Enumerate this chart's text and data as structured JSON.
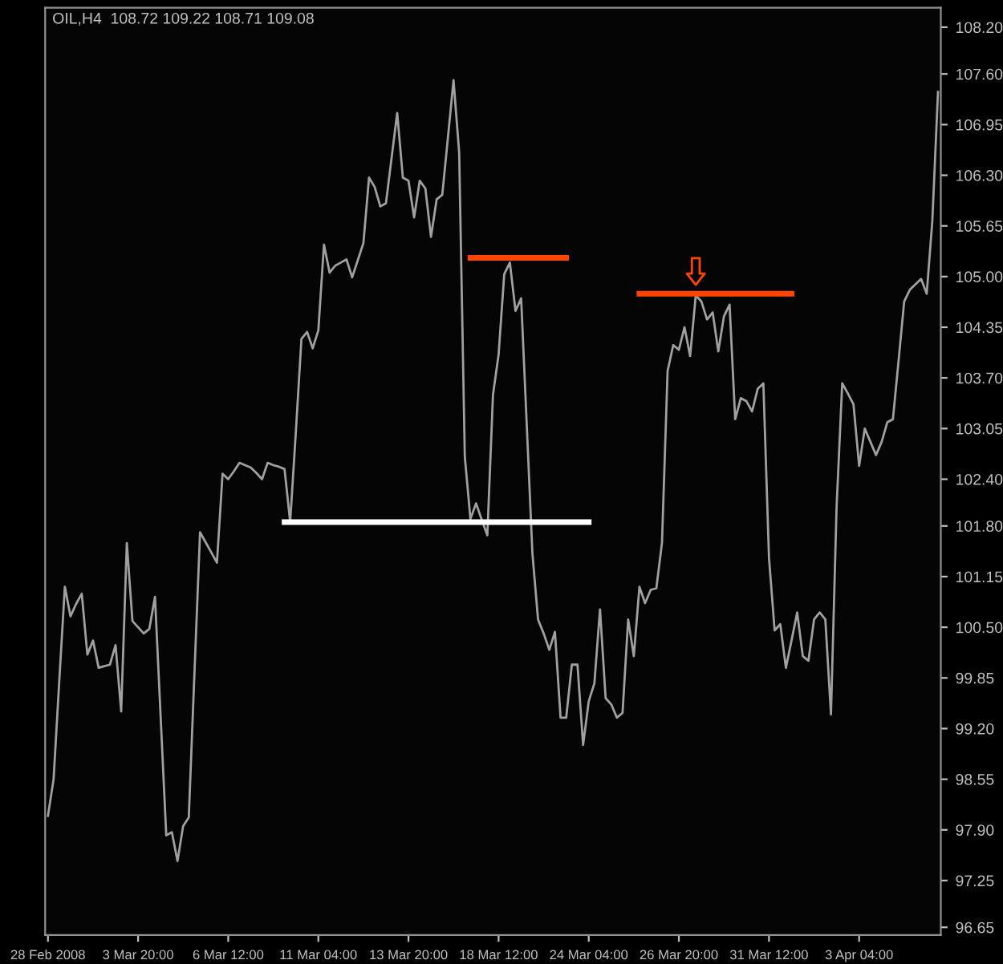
{
  "chart_data": {
    "type": "line",
    "title": "OIL,H4  108.72 109.22 108.71 109.08",
    "categories": [
      "28 Feb 2008",
      null,
      null,
      null,
      null,
      null,
      null,
      null,
      null,
      null,
      null,
      null,
      null,
      null,
      null,
      null,
      "3 Mar 20:00",
      null,
      null,
      null,
      null,
      null,
      null,
      null,
      null,
      null,
      null,
      null,
      null,
      null,
      null,
      null,
      "6 Mar 12:00",
      null,
      null,
      null,
      null,
      null,
      null,
      null,
      null,
      null,
      null,
      null,
      null,
      null,
      null,
      null,
      "11 Mar 04:00",
      null,
      null,
      null,
      null,
      null,
      null,
      null,
      null,
      null,
      null,
      null,
      null,
      null,
      null,
      null,
      "13 Mar 20:00",
      null,
      null,
      null,
      null,
      null,
      null,
      null,
      null,
      null,
      null,
      null,
      null,
      null,
      null,
      null,
      "18 Mar 12:00",
      null,
      null,
      null,
      null,
      null,
      null,
      null,
      null,
      null,
      null,
      null,
      null,
      null,
      null,
      null,
      "24 Mar 04:00",
      null,
      null,
      null,
      null,
      null,
      null,
      null,
      null,
      null,
      null,
      null,
      null,
      null,
      null,
      null,
      "26 Mar 20:00",
      null,
      null,
      null,
      null,
      null,
      null,
      null,
      null,
      null,
      null,
      null,
      null,
      null,
      null,
      null,
      "31 Mar 12:00",
      null,
      null,
      null,
      null,
      null,
      null,
      null,
      null,
      null,
      null,
      null,
      null,
      null,
      null,
      null,
      "3 Apr 04:00",
      null,
      null,
      null,
      null,
      null,
      null,
      null,
      null,
      null,
      null,
      null,
      null,
      null,
      null
    ],
    "series": [
      {
        "color": "#a0a0a0",
        "values": [
          98.08,
          98.55,
          99.8,
          101.02,
          100.64,
          100.8,
          100.93,
          100.15,
          100.33,
          99.98,
          100.0,
          100.02,
          100.27,
          99.42,
          101.58,
          100.58,
          100.5,
          100.42,
          100.48,
          100.89,
          99.36,
          97.83,
          97.87,
          97.5,
          97.95,
          98.06,
          99.9,
          101.72,
          101.59,
          101.46,
          101.33,
          102.47,
          102.4,
          102.5,
          102.61,
          102.58,
          102.55,
          102.48,
          102.4,
          102.61,
          102.58,
          102.56,
          102.53,
          101.85,
          103.0,
          104.2,
          104.29,
          104.08,
          104.31,
          105.41,
          105.05,
          105.14,
          105.18,
          105.22,
          104.99,
          105.21,
          105.43,
          106.27,
          106.15,
          105.9,
          105.94,
          106.52,
          107.1,
          106.27,
          106.23,
          105.76,
          106.23,
          106.13,
          105.51,
          105.99,
          106.05,
          106.78,
          107.52,
          106.59,
          102.69,
          101.89,
          102.09,
          101.88,
          101.68,
          103.48,
          104.0,
          105.03,
          105.18,
          104.56,
          104.72,
          103.09,
          101.45,
          100.6,
          100.42,
          100.21,
          100.44,
          99.34,
          99.34,
          100.02,
          100.02,
          98.99,
          99.55,
          99.78,
          100.73,
          99.59,
          99.51,
          99.34,
          99.4,
          100.6,
          100.13,
          101.02,
          100.81,
          100.98,
          101.0,
          101.58,
          103.79,
          104.12,
          104.06,
          104.35,
          103.98,
          104.76,
          104.68,
          104.45,
          104.54,
          104.04,
          104.49,
          104.64,
          103.17,
          103.44,
          103.4,
          103.27,
          103.56,
          103.63,
          101.39,
          100.46,
          100.54,
          99.98,
          100.33,
          100.69,
          100.13,
          100.07,
          100.6,
          100.69,
          100.6,
          99.38,
          102.05,
          103.63,
          103.5,
          103.36,
          102.57,
          103.05,
          102.88,
          102.71,
          102.88,
          103.13,
          103.17,
          103.92,
          104.68,
          104.83,
          104.9,
          104.97,
          104.78,
          105.72,
          107.37
        ]
      },
      {
        "color": "#ffffff",
        "values": [
          null,
          null,
          null,
          null,
          null,
          null,
          null,
          null,
          null,
          null,
          null,
          null,
          null,
          null,
          null,
          null,
          null,
          null,
          null,
          null,
          null,
          null,
          null,
          null,
          null,
          null,
          null,
          null,
          null,
          null,
          null,
          null,
          null,
          null,
          null,
          null,
          null,
          null,
          null,
          null,
          null,
          null,
          101.85,
          101.85,
          101.85,
          101.85,
          101.85,
          101.85,
          101.85,
          101.85,
          101.85,
          101.85,
          101.85,
          101.85,
          101.85,
          101.85,
          101.85,
          101.85,
          101.85,
          101.85,
          101.85,
          101.85,
          101.85,
          101.85,
          101.85,
          101.85,
          101.85,
          101.85,
          101.85,
          101.85,
          101.85,
          101.85,
          101.85,
          101.85,
          101.85,
          101.85,
          101.85,
          101.85,
          101.85,
          101.85,
          101.85,
          101.85,
          101.85,
          101.85,
          101.85,
          101.85,
          101.85,
          101.85,
          101.85,
          101.85,
          101.85,
          101.85,
          101.85,
          101.85,
          101.85,
          101.85,
          101.85,
          null,
          null,
          null,
          null,
          null,
          null,
          null,
          null,
          null,
          null,
          null,
          null,
          null,
          null,
          null,
          null,
          null,
          null,
          null,
          null,
          null,
          null,
          null,
          null,
          null,
          null,
          null,
          null,
          null,
          null,
          null,
          null,
          null,
          null,
          null,
          null,
          null,
          null,
          null,
          null,
          null,
          null,
          null,
          null,
          null,
          null,
          null,
          null,
          null,
          null,
          null,
          null,
          null,
          null,
          null,
          null,
          null,
          null,
          null,
          null,
          null,
          null
        ]
      },
      {
        "color": "#ff4500",
        "values": [
          null,
          null,
          null,
          null,
          null,
          null,
          null,
          null,
          null,
          null,
          null,
          null,
          null,
          null,
          null,
          null,
          null,
          null,
          null,
          null,
          null,
          null,
          null,
          null,
          null,
          null,
          null,
          null,
          null,
          null,
          null,
          null,
          null,
          null,
          null,
          null,
          null,
          null,
          null,
          null,
          null,
          null,
          null,
          null,
          null,
          null,
          null,
          null,
          null,
          null,
          null,
          null,
          null,
          null,
          null,
          null,
          null,
          null,
          null,
          null,
          null,
          null,
          null,
          null,
          null,
          null,
          null,
          null,
          null,
          null,
          null,
          null,
          null,
          null,
          null,
          105.24,
          105.24,
          105.24,
          105.24,
          105.24,
          105.24,
          105.24,
          105.24,
          105.24,
          105.24,
          105.24,
          105.24,
          105.24,
          105.24,
          105.24,
          105.24,
          105.24,
          105.24,
          null,
          null,
          null,
          null,
          null,
          null,
          null,
          null,
          null,
          null,
          null,
          null,
          null,
          null,
          null,
          null,
          null,
          null,
          null,
          null,
          null,
          null,
          null,
          null,
          null,
          null,
          null,
          null,
          null,
          null,
          null,
          null,
          null,
          null,
          null,
          null,
          null,
          null,
          null,
          null,
          null,
          null,
          null,
          null,
          null,
          null,
          null,
          null,
          null,
          null,
          null,
          null,
          null,
          null,
          null,
          null,
          null,
          null,
          null,
          null,
          null,
          null,
          null,
          null,
          null,
          null
        ]
      },
      {
        "color": "#ff4500",
        "values": [
          null,
          null,
          null,
          null,
          null,
          null,
          null,
          null,
          null,
          null,
          null,
          null,
          null,
          null,
          null,
          null,
          null,
          null,
          null,
          null,
          null,
          null,
          null,
          null,
          null,
          null,
          null,
          null,
          null,
          null,
          null,
          null,
          null,
          null,
          null,
          null,
          null,
          null,
          null,
          null,
          null,
          null,
          null,
          null,
          null,
          null,
          null,
          null,
          null,
          null,
          null,
          null,
          null,
          null,
          null,
          null,
          null,
          null,
          null,
          null,
          null,
          null,
          null,
          null,
          null,
          null,
          null,
          null,
          null,
          null,
          null,
          null,
          null,
          null,
          null,
          null,
          null,
          null,
          null,
          null,
          null,
          null,
          null,
          null,
          null,
          null,
          null,
          null,
          null,
          null,
          null,
          null,
          null,
          null,
          null,
          null,
          null,
          null,
          null,
          null,
          null,
          null,
          null,
          null,
          null,
          104.78,
          104.78,
          104.78,
          104.78,
          104.78,
          104.78,
          104.78,
          104.78,
          104.78,
          104.78,
          104.78,
          104.78,
          104.78,
          104.78,
          104.78,
          104.78,
          104.78,
          104.78,
          104.78,
          104.78,
          104.78,
          104.78,
          104.78,
          104.78,
          104.78,
          104.78,
          104.78,
          104.78,
          null,
          null,
          null,
          null,
          null,
          null,
          null,
          null,
          null,
          null,
          null,
          null,
          null,
          null,
          null,
          null,
          null,
          null,
          null,
          null,
          null,
          null,
          null,
          null,
          null,
          null
        ]
      }
    ],
    "ylim": [
      96.55,
      108.45
    ],
    "yticks": [
      {
        "value": 108.2,
        "label": "108.20"
      },
      {
        "value": 107.6,
        "label": "107.60"
      },
      {
        "value": 106.95,
        "label": "106.95"
      },
      {
        "value": 106.3,
        "label": "106.30"
      },
      {
        "value": 105.65,
        "label": "105.65"
      },
      {
        "value": 105.0,
        "label": "105.00"
      },
      {
        "value": 104.35,
        "label": "104.35"
      },
      {
        "value": 103.7,
        "label": "103.70"
      },
      {
        "value": 103.05,
        "label": "103.05"
      },
      {
        "value": 102.4,
        "label": "102.40"
      },
      {
        "value": 101.8,
        "label": "101.80"
      },
      {
        "value": 101.15,
        "label": "101.15"
      },
      {
        "value": 100.5,
        "label": "100.50"
      },
      {
        "value": 99.85,
        "label": "99.85"
      },
      {
        "value": 99.2,
        "label": "99.20"
      },
      {
        "value": 98.55,
        "label": "98.55"
      },
      {
        "value": 97.9,
        "label": "97.90"
      },
      {
        "value": 97.25,
        "label": "97.25"
      },
      {
        "value": 96.65,
        "label": "96.65"
      }
    ]
  }
}
